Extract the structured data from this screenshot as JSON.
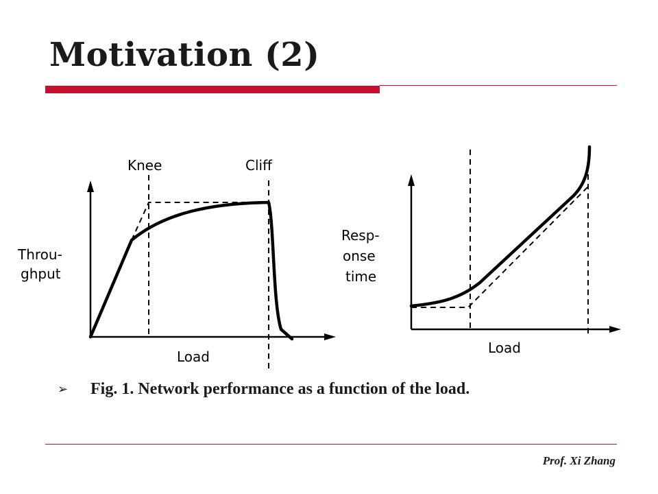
{
  "slide": {
    "title": "Motivation (2)",
    "caption": "Fig. 1. Network performance as a function of the load.",
    "bullet": "➢",
    "footer": "Prof. Xi Zhang"
  },
  "diagram": {
    "throughput": {
      "ylabel_line1": "Throu-",
      "ylabel_line2": "ghput",
      "xlabel": "Load",
      "knee_label": "Knee",
      "cliff_label": "Cliff"
    },
    "response": {
      "ylabel_line1": "Resp-",
      "ylabel_line2": "onse",
      "ylabel_line3": "time",
      "xlabel": "Load"
    }
  }
}
